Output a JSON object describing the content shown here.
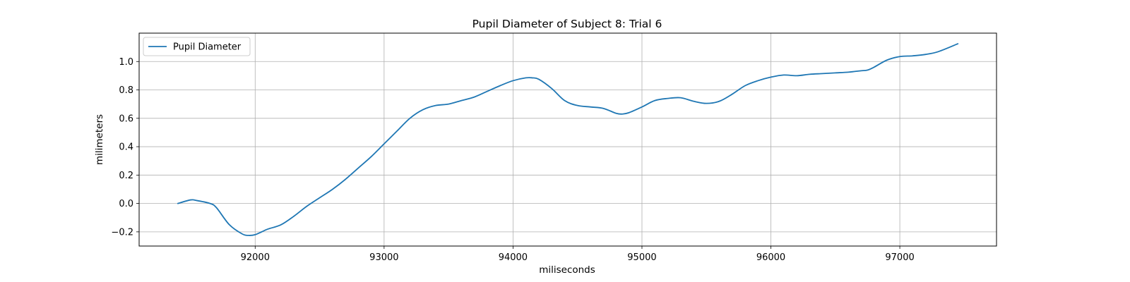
{
  "chart_data": {
    "type": "line",
    "title": "Pupil Diameter of Subject 8: Trial 6",
    "xlabel": "miliseconds",
    "ylabel": "milimeters",
    "xlim": [
      91100,
      97750
    ],
    "ylim": [
      -0.3,
      1.2
    ],
    "xticks": [
      92000,
      93000,
      94000,
      95000,
      96000,
      97000
    ],
    "yticks": [
      -0.2,
      0.0,
      0.2,
      0.4,
      0.6,
      0.8,
      1.0
    ],
    "ytick_labels": [
      "−0.2",
      "0.0",
      "0.2",
      "0.4",
      "0.6",
      "0.8",
      "1.0"
    ],
    "grid": true,
    "legend_position": "top-left",
    "line_color": "#1f77b4",
    "series": [
      {
        "name": "Pupil Diameter",
        "x": [
          91400,
          91500,
          91550,
          91650,
          91700,
          91800,
          91900,
          91950,
          92000,
          92050,
          92100,
          92200,
          92300,
          92400,
          92500,
          92600,
          92700,
          92800,
          92900,
          93000,
          93100,
          93200,
          93300,
          93400,
          93500,
          93600,
          93700,
          93800,
          93900,
          94000,
          94100,
          94150,
          94200,
          94300,
          94400,
          94500,
          94600,
          94700,
          94800,
          94850,
          94900,
          95000,
          95100,
          95200,
          95300,
          95400,
          95500,
          95600,
          95700,
          95800,
          95900,
          96000,
          96100,
          96200,
          96300,
          96400,
          96500,
          96600,
          96650,
          96700,
          96750,
          96800,
          96900,
          97000,
          97100,
          97200,
          97300,
          97450
        ],
        "y": [
          0.0,
          0.025,
          0.02,
          0.0,
          -0.03,
          -0.15,
          -0.215,
          -0.225,
          -0.22,
          -0.2,
          -0.18,
          -0.15,
          -0.09,
          -0.02,
          0.04,
          0.1,
          0.17,
          0.25,
          0.33,
          0.42,
          0.51,
          0.6,
          0.66,
          0.69,
          0.7,
          0.725,
          0.75,
          0.79,
          0.83,
          0.865,
          0.885,
          0.885,
          0.875,
          0.81,
          0.725,
          0.69,
          0.68,
          0.67,
          0.635,
          0.63,
          0.64,
          0.68,
          0.725,
          0.74,
          0.745,
          0.72,
          0.705,
          0.72,
          0.77,
          0.83,
          0.865,
          0.89,
          0.905,
          0.9,
          0.91,
          0.915,
          0.92,
          0.925,
          0.93,
          0.935,
          0.94,
          0.96,
          1.01,
          1.035,
          1.04,
          1.05,
          1.07,
          1.125
        ]
      }
    ]
  }
}
